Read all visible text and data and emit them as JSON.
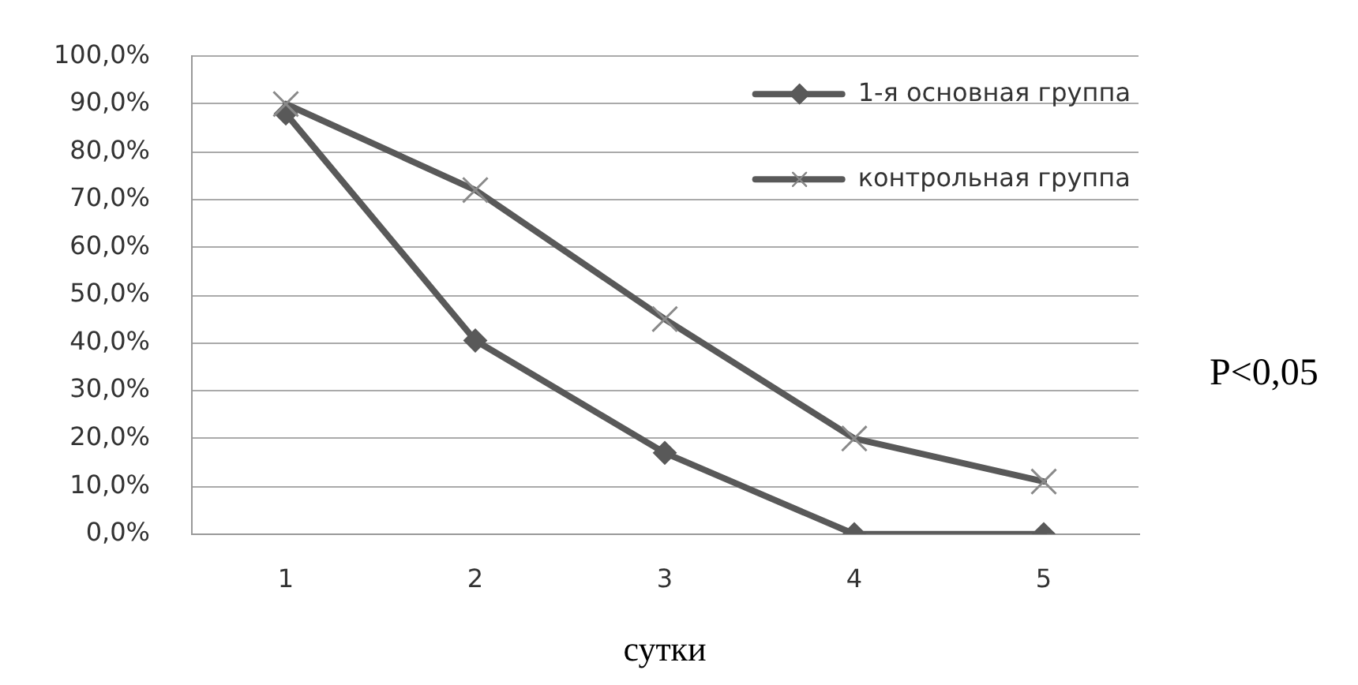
{
  "chart_data": {
    "type": "line",
    "xlabel": "сутки",
    "categories": [
      "1",
      "2",
      "3",
      "4",
      "5"
    ],
    "series": [
      {
        "name": "1-я основная группа",
        "color": "#595959",
        "marker": "diamond",
        "values": [
          88,
          40.5,
          17,
          0,
          0
        ]
      },
      {
        "name": "контрольная группа",
        "color": "#595959",
        "marker": "cross",
        "values": [
          90,
          72,
          45,
          20,
          11
        ]
      }
    ],
    "ylim": [
      0,
      100
    ],
    "yticks": [
      {
        "value": 0,
        "label": "0,0%"
      },
      {
        "value": 10,
        "label": "10,0%"
      },
      {
        "value": 20,
        "label": "20,0%"
      },
      {
        "value": 30,
        "label": "30,0%"
      },
      {
        "value": 40,
        "label": "40,0%"
      },
      {
        "value": 50,
        "label": "50,0%"
      },
      {
        "value": 60,
        "label": "60,0%"
      },
      {
        "value": 70,
        "label": "70,0%"
      },
      {
        "value": 80,
        "label": "80,0%"
      },
      {
        "value": 90,
        "label": "90,0%"
      },
      {
        "value": 100,
        "label": "100,0%"
      }
    ],
    "grid": "y",
    "legend": "top right",
    "line_style": "solid",
    "annotations": [
      "P<0,05"
    ]
  }
}
